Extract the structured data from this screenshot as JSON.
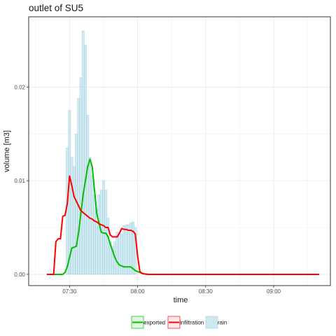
{
  "chart_data": {
    "type": "bar",
    "title": "outlet of SU5",
    "xlabel": "time",
    "ylabel": "volume [m3]",
    "xlim": [
      "07:12",
      "09:25"
    ],
    "ylim": [
      -0.0012,
      0.0275
    ],
    "x_ticks": [
      "07:30",
      "08:00",
      "08:30",
      "09:00"
    ],
    "y_ticks": [
      "0.00",
      "0.01",
      "0.02"
    ],
    "y_tick_values": [
      0,
      0.01,
      0.02
    ],
    "grid": true,
    "legend_position": "bottom",
    "legend": [
      {
        "label": "exported",
        "color": "#00c000",
        "kind": "line"
      },
      {
        "label": "infiltration",
        "color": "#ff0000",
        "kind": "line"
      },
      {
        "label": "rain",
        "color": "#add8e6",
        "kind": "bar"
      }
    ],
    "bar_series": {
      "name": "rain",
      "x": [
        "07:29",
        "07:30",
        "07:31",
        "07:32",
        "07:33",
        "07:34",
        "07:35",
        "07:36",
        "07:37",
        "07:38",
        "07:39",
        "07:40",
        "07:41",
        "07:42",
        "07:43",
        "07:44",
        "07:45",
        "07:46",
        "07:47",
        "07:48",
        "07:49",
        "07:50",
        "07:51",
        "07:52",
        "07:53",
        "07:54",
        "07:55",
        "07:56",
        "07:57",
        "07:58",
        "07:59"
      ],
      "values": [
        0.0135,
        0.0175,
        0.0125,
        0.0115,
        0.015,
        0.0188,
        0.021,
        0.026,
        0.0245,
        0.017,
        0.0125,
        0.0105,
        0.0085,
        0.007,
        0.0085,
        0.009,
        0.01,
        0.009,
        0.006,
        0.0035,
        0.003,
        0.0035,
        0.0045,
        0.0045,
        0.0043,
        0.0052,
        0.0053,
        0.0053,
        0.0055,
        0.0056,
        0.005
      ]
    },
    "series": [
      {
        "name": "exported",
        "color": "#00c000",
        "x": [
          "07:20",
          "07:27",
          "07:28",
          "07:29",
          "07:30",
          "07:31",
          "07:32",
          "07:33",
          "07:34",
          "07:35",
          "07:36",
          "07:37",
          "07:38",
          "07:39",
          "07:40",
          "07:41",
          "07:42",
          "07:43",
          "07:44",
          "07:45",
          "07:46",
          "07:47",
          "07:48",
          "07:49",
          "07:50",
          "07:51",
          "07:52",
          "07:53",
          "07:54",
          "07:55",
          "07:56",
          "07:57",
          "07:58",
          "07:59",
          "08:00",
          "08:01",
          "08:02",
          "08:03",
          "08:04",
          "08:06",
          "08:10",
          "08:20",
          "09:00",
          "09:20"
        ],
        "values": [
          0,
          0,
          0.0002,
          0.0008,
          0.0018,
          0.0028,
          0.0029,
          0.003,
          0.0045,
          0.0065,
          0.0085,
          0.01,
          0.0115,
          0.0123,
          0.0115,
          0.009,
          0.0065,
          0.0055,
          0.0045,
          0.0044,
          0.0044,
          0.004,
          0.0032,
          0.0025,
          0.0018,
          0.0013,
          0.001,
          0.0009,
          0.0008,
          0.0008,
          0.0008,
          0.0008,
          0.0006,
          0.0004,
          0.0003,
          0.0002,
          0.0001,
          5e-05,
          0,
          0,
          0,
          0,
          0,
          0
        ]
      },
      {
        "name": "infiltration",
        "color": "#ff0000",
        "x": [
          "07:20",
          "07:23",
          "07:24",
          "07:25",
          "07:26",
          "07:27",
          "07:28",
          "07:29",
          "07:30",
          "07:31",
          "07:32",
          "07:33",
          "07:34",
          "07:35",
          "07:36",
          "07:37",
          "07:38",
          "07:39",
          "07:40",
          "07:41",
          "07:42",
          "07:43",
          "07:44",
          "07:45",
          "07:46",
          "07:47",
          "07:48",
          "07:49",
          "07:50",
          "07:51",
          "07:52",
          "07:53",
          "07:54",
          "07:55",
          "07:56",
          "07:57",
          "07:58",
          "07:59",
          "08:00",
          "08:01",
          "08:02",
          "08:03",
          "08:05",
          "08:10",
          "08:20",
          "09:00",
          "09:20"
        ],
        "values": [
          0,
          0,
          0.0035,
          0.0038,
          0.0038,
          0.0062,
          0.0063,
          0.0075,
          0.0105,
          0.0095,
          0.0083,
          0.0078,
          0.0073,
          0.0068,
          0.0066,
          0.0064,
          0.0062,
          0.006,
          0.0059,
          0.0057,
          0.0056,
          0.0054,
          0.0053,
          0.0052,
          0.005,
          0.005,
          0.0042,
          0.004,
          0.004,
          0.004,
          0.0044,
          0.0049,
          0.0048,
          0.0048,
          0.0047,
          0.0047,
          0.0046,
          0.0043,
          0.002,
          0.0003,
          0.0001,
          5e-05,
          0,
          0,
          0,
          0,
          0
        ]
      }
    ]
  }
}
